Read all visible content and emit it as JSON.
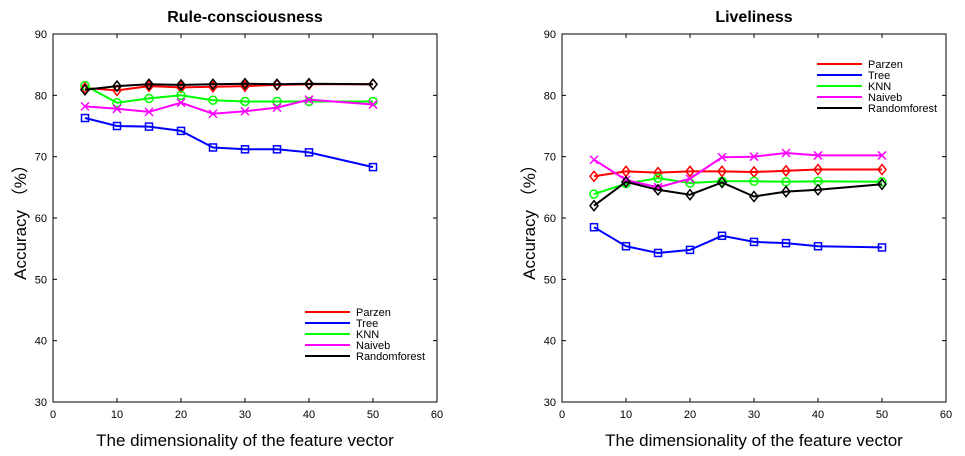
{
  "chart_data": [
    {
      "type": "line",
      "title": "Rule-consciousness",
      "xlabel": "The dimensionality of the feature vector",
      "ylabel": "Accuracy （%）",
      "xlim": [
        0,
        60
      ],
      "ylim": [
        30,
        90
      ],
      "xticks": [
        "0",
        "10",
        "20",
        "30",
        "40",
        "50",
        "60"
      ],
      "yticks": [
        "30",
        "40",
        "50",
        "60",
        "70",
        "80",
        "90"
      ],
      "x": [
        5,
        10,
        15,
        20,
        25,
        30,
        35,
        40,
        50
      ],
      "legend_position": "bottom-right",
      "grid": false,
      "series": [
        {
          "name": "Parzen",
          "color": "#ff0000",
          "marker": "diamond",
          "values": [
            81.2,
            80.8,
            81.5,
            81.3,
            81.4,
            81.5,
            81.7,
            81.8,
            81.8
          ]
        },
        {
          "name": "Tree",
          "color": "#0000ff",
          "marker": "square",
          "values": [
            76.3,
            75.0,
            74.9,
            74.2,
            71.5,
            71.2,
            71.2,
            70.7,
            68.3
          ]
        },
        {
          "name": "KNN",
          "color": "#00ff00",
          "marker": "circle",
          "values": [
            81.6,
            78.8,
            79.5,
            80.0,
            79.2,
            79.0,
            79.0,
            79.0,
            79.0
          ]
        },
        {
          "name": "Naiveb",
          "color": "#ff00ff",
          "marker": "x",
          "values": [
            78.2,
            77.8,
            77.3,
            78.8,
            77.0,
            77.4,
            78.0,
            79.3,
            78.5
          ]
        },
        {
          "name": "Randomforest",
          "color": "#000000",
          "marker": "diamond",
          "values": [
            80.9,
            81.5,
            81.8,
            81.7,
            81.8,
            81.9,
            81.8,
            81.9,
            81.8
          ]
        }
      ]
    },
    {
      "type": "line",
      "title": "Liveliness",
      "xlabel": "The dimensionality of the feature vector",
      "ylabel": "Accuracy （%）",
      "xlim": [
        0,
        60
      ],
      "ylim": [
        30,
        90
      ],
      "xticks": [
        "0",
        "10",
        "20",
        "30",
        "40",
        "50",
        "60"
      ],
      "yticks": [
        "30",
        "40",
        "50",
        "60",
        "70",
        "80",
        "90"
      ],
      "x": [
        5,
        10,
        15,
        20,
        25,
        30,
        35,
        40,
        50
      ],
      "legend_position": "top-right",
      "grid": false,
      "series": [
        {
          "name": "Parzen",
          "color": "#ff0000",
          "marker": "diamond",
          "values": [
            66.8,
            67.6,
            67.4,
            67.6,
            67.6,
            67.5,
            67.7,
            67.9,
            67.9
          ]
        },
        {
          "name": "Tree",
          "color": "#0000ff",
          "marker": "square",
          "values": [
            58.5,
            55.4,
            54.3,
            54.8,
            57.1,
            56.1,
            55.9,
            55.4,
            55.2
          ]
        },
        {
          "name": "KNN",
          "color": "#00ff00",
          "marker": "circle",
          "values": [
            63.9,
            65.6,
            66.5,
            65.7,
            66.0,
            66.0,
            65.9,
            66.0,
            65.9
          ]
        },
        {
          "name": "Naiveb",
          "color": "#ff00ff",
          "marker": "x",
          "values": [
            69.5,
            66.2,
            65.0,
            66.4,
            69.9,
            70.0,
            70.6,
            70.2,
            70.2
          ]
        },
        {
          "name": "Randomforest",
          "color": "#000000",
          "marker": "diamond",
          "values": [
            62.0,
            65.9,
            64.6,
            63.8,
            65.8,
            63.5,
            64.3,
            64.6,
            65.5
          ]
        }
      ]
    }
  ]
}
